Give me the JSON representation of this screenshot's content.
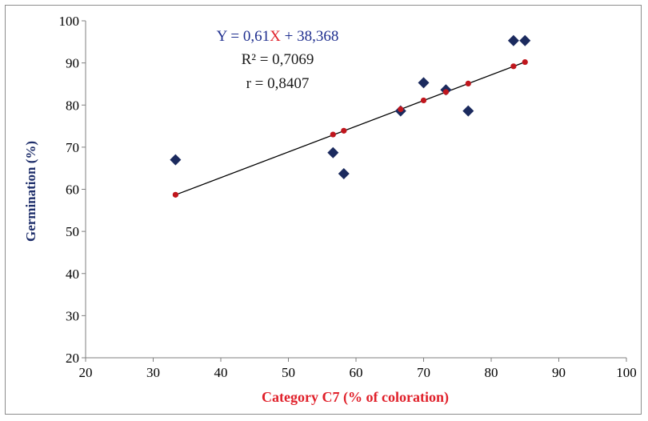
{
  "chart_data": {
    "type": "scatter",
    "xlabel": "Category C7 (% of coloration)",
    "ylabel": "Germination (%)",
    "xlim": [
      20,
      100
    ],
    "ylim": [
      20,
      100
    ],
    "xticks": [
      20,
      30,
      40,
      50,
      60,
      70,
      80,
      90,
      100
    ],
    "yticks": [
      20,
      30,
      40,
      50,
      60,
      70,
      80,
      90,
      100
    ],
    "grid": false,
    "legend": "none",
    "annotation": {
      "equation_prefix": "Y = 0,61",
      "equation_var": "X",
      "equation_suffix": " + 38,368",
      "r_squared_label": "R² = 0,7069",
      "r_label": "r = 0,8407"
    },
    "series": [
      {
        "kind": "observed",
        "marker": "diamond",
        "color": "#1b2a5e",
        "x": [
          33.3,
          56.6,
          58.2,
          66.6,
          70.0,
          73.3,
          76.6,
          83.3,
          85.0
        ],
        "y": [
          67.0,
          68.7,
          63.7,
          78.6,
          85.3,
          83.6,
          78.6,
          95.3,
          95.3
        ]
      },
      {
        "kind": "predicted",
        "marker": "circle",
        "color": "#c0161d",
        "x": [
          33.3,
          56.6,
          58.2,
          66.6,
          70.0,
          73.3,
          76.6,
          83.3,
          85.0
        ],
        "y": [
          58.7,
          73.0,
          73.9,
          79.0,
          81.1,
          83.1,
          85.1,
          89.2,
          90.2
        ]
      }
    ],
    "trendline": {
      "color": "#000000",
      "slope": 0.61,
      "intercept": 38.368,
      "x_range": [
        33.3,
        85.0
      ]
    }
  }
}
